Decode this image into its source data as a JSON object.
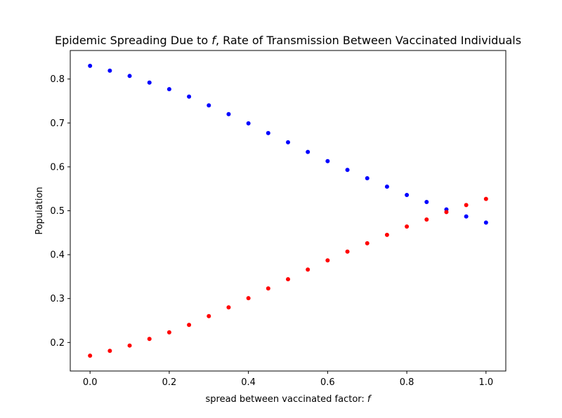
{
  "chart_data": {
    "type": "scatter",
    "title": "Epidemic Spreading Due to f, Rate of Transmission Between Vaccinated Individuals",
    "title_parts": {
      "before": "Epidemic Spreading Due to ",
      "symbol": "f",
      "after": ", Rate of Transmission Between Vaccinated Individuals"
    },
    "xlabel": "spread between vaccinated factor: f",
    "xlabel_parts": {
      "before": "spread between vaccinated factor: ",
      "symbol": "f"
    },
    "ylabel": "Population",
    "xlim": [
      -0.05,
      1.05
    ],
    "ylim": [
      0.135,
      0.865
    ],
    "x_ticks": [
      0.0,
      0.2,
      0.4,
      0.6,
      0.8,
      1.0
    ],
    "x_tick_labels": [
      "0.0",
      "0.2",
      "0.4",
      "0.6",
      "0.8",
      "1.0"
    ],
    "y_ticks": [
      0.2,
      0.3,
      0.4,
      0.5,
      0.6,
      0.7,
      0.8
    ],
    "y_tick_labels": [
      "0.2",
      "0.3",
      "0.4",
      "0.5",
      "0.6",
      "0.7",
      "0.8"
    ],
    "grid": false,
    "x": [
      0.0,
      0.05,
      0.1,
      0.15,
      0.2,
      0.25,
      0.3,
      0.35,
      0.4,
      0.45,
      0.5,
      0.55,
      0.6,
      0.65,
      0.7,
      0.75,
      0.8,
      0.85,
      0.9,
      0.95,
      1.0
    ],
    "series": [
      {
        "color": "#0000ff",
        "values": [
          0.83,
          0.819,
          0.807,
          0.792,
          0.777,
          0.76,
          0.74,
          0.72,
          0.699,
          0.677,
          0.656,
          0.634,
          0.613,
          0.593,
          0.574,
          0.555,
          0.536,
          0.52,
          0.503,
          0.487,
          0.473
        ]
      },
      {
        "color": "#ff0000",
        "values": [
          0.17,
          0.181,
          0.193,
          0.208,
          0.223,
          0.24,
          0.26,
          0.28,
          0.301,
          0.323,
          0.344,
          0.366,
          0.387,
          0.407,
          0.426,
          0.445,
          0.464,
          0.48,
          0.497,
          0.513,
          0.527
        ]
      }
    ]
  }
}
